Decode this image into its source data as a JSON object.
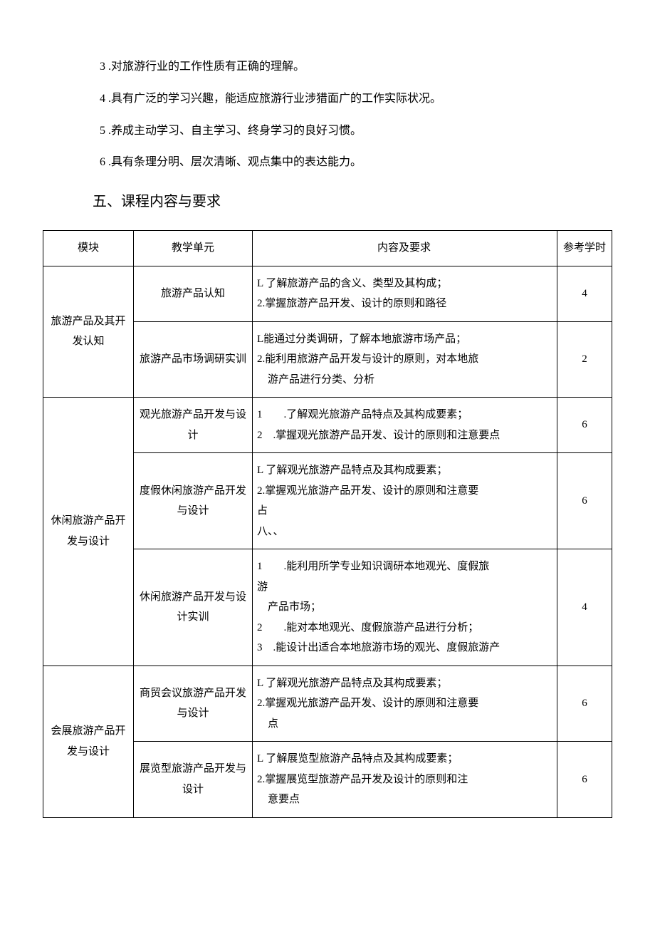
{
  "list_items": [
    "3 .对旅游行业的工作性质有正确的理解。",
    "4 .具有广泛的学习兴趣，能适应旅游行业涉猎面广的工作实际状况。",
    "5 .养成主动学习、自主学习、终身学习的良好习惯。",
    "6 .具有条理分明、层次清晰、观点集中的表达能力。"
  ],
  "section_heading": "五、课程内容与要求",
  "table": {
    "headers": {
      "module": "模块",
      "unit": "教学单元",
      "content": "内容及要求",
      "hours": "参考学时"
    },
    "modules": [
      {
        "name": "旅游产品及其开发认知",
        "units": [
          {
            "name": "旅游产品认知",
            "content_lines": [
              "L 了解旅游产品的含义、类型及其构成；",
              "2.掌握旅游产品开发、设计的原则和路径"
            ],
            "hours": "4"
          },
          {
            "name": "旅游产品市场调研实训",
            "content_lines": [
              "L能通过分类调研，了解本地旅游市场产品；",
              "2.能利用旅游产品开发与设计的原则，对本地旅",
              "　游产品进行分类、分析"
            ],
            "hours": "2"
          }
        ]
      },
      {
        "name": "休闲旅游产品开发与设计",
        "units": [
          {
            "name": "观光旅游产品开发与设计",
            "content_lines": [
              "1　　.了解观光旅游产品特点及其构成要素；",
              "2　.掌握观光旅游产品开发、设计的原则和注意要点"
            ],
            "hours": "6"
          },
          {
            "name": "度假休闲旅游产品开发与设计",
            "content_lines": [
              "L 了解观光旅游产品特点及其构成要素；",
              "2.掌握观光旅游产品开发、设计的原则和注意要",
              "占",
              "八、、"
            ],
            "hours": "6"
          },
          {
            "name": "休闲旅游产品开发与设计实训",
            "content_lines": [
              "1　　.能利用所学专业知识调研本地观光、度假旅",
              "游",
              "　产品市场；",
              "2　　.能对本地观光、度假旅游产品进行分析；",
              "3　.能设计出适合本地旅游市场的观光、度假旅游产"
            ],
            "hours": "4"
          }
        ]
      },
      {
        "name": "会展旅游产品开发与设计",
        "units": [
          {
            "name": "商贸会议旅游产品开发与设计",
            "content_lines": [
              "L 了解观光旅游产品特点及其构成要素；",
              "2.掌握观光旅游产品开发、设计的原则和注意要",
              "　点"
            ],
            "hours": "6"
          },
          {
            "name": "展览型旅游产品开发与设计",
            "content_lines": [
              "L 了解展览型旅游产品特点及其构成要素；",
              "2.掌握展览型旅游产品开发及设计的原则和注",
              "　意要点"
            ],
            "hours": "6"
          }
        ]
      }
    ]
  }
}
